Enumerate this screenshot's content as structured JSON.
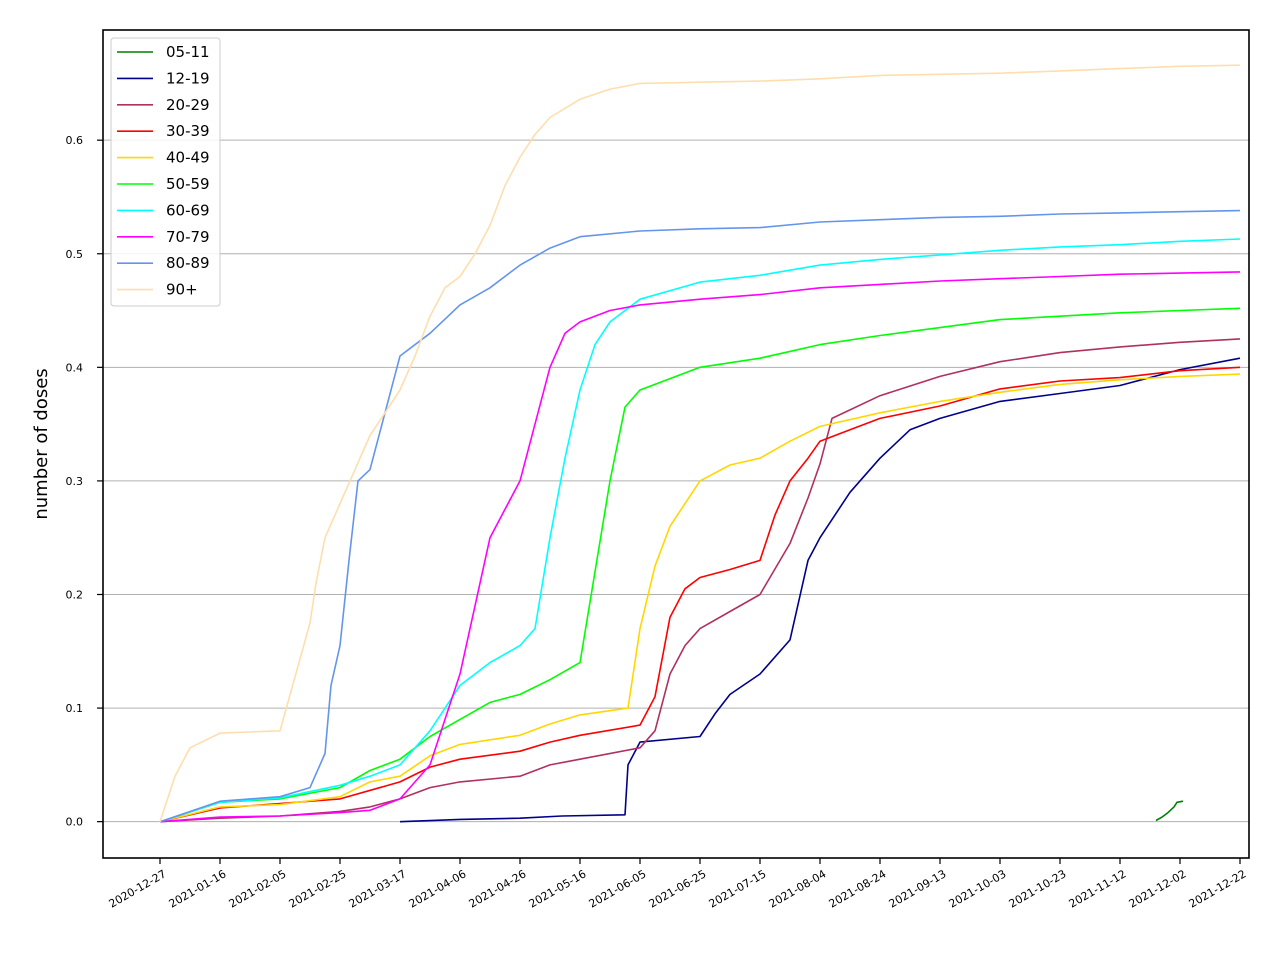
{
  "chart_data": {
    "type": "line",
    "title": "",
    "xlabel": "",
    "ylabel": "number of doses",
    "x_ticks": [
      "2020-12-27",
      "2021-01-16",
      "2021-02-05",
      "2021-02-25",
      "2021-03-17",
      "2021-04-06",
      "2021-04-26",
      "2021-05-16",
      "2021-06-05",
      "2021-06-25",
      "2021-07-15",
      "2021-08-04",
      "2021-08-24",
      "2021-09-13",
      "2021-10-03",
      "2021-10-23",
      "2021-11-12",
      "2021-12-02",
      "2021-12-22"
    ],
    "y_ticks": [
      "0.0",
      "0.1",
      "0.2",
      "0.3",
      "0.4",
      "0.5",
      "0.6"
    ],
    "xlim": [
      "2020-12-08",
      "2021-12-25"
    ],
    "ylim": [
      -0.032,
      0.697
    ],
    "grid": "horizontal",
    "legend_position": "top-left",
    "series": [
      {
        "name": "05-11",
        "color": "#008000",
        "points": [
          [
            "2021-11-24",
            0.001
          ],
          [
            "2021-11-26",
            0.004
          ],
          [
            "2021-11-28",
            0.008
          ],
          [
            "2021-11-30",
            0.013
          ],
          [
            "2021-12-01",
            0.017
          ],
          [
            "2021-12-03",
            0.018
          ]
        ]
      },
      {
        "name": "12-19",
        "color": "#00008b",
        "points": [
          [
            "2021-03-17",
            0.0
          ],
          [
            "2021-04-06",
            0.002
          ],
          [
            "2021-04-26",
            0.003
          ],
          [
            "2021-05-10",
            0.005
          ],
          [
            "2021-05-31",
            0.006
          ],
          [
            "2021-06-01",
            0.05
          ],
          [
            "2021-06-05",
            0.07
          ],
          [
            "2021-06-25",
            0.075
          ],
          [
            "2021-06-30",
            0.095
          ],
          [
            "2021-07-05",
            0.112
          ],
          [
            "2021-07-15",
            0.13
          ],
          [
            "2021-07-25",
            0.16
          ],
          [
            "2021-07-31",
            0.23
          ],
          [
            "2021-08-04",
            0.25
          ],
          [
            "2021-08-14",
            0.29
          ],
          [
            "2021-08-24",
            0.32
          ],
          [
            "2021-09-03",
            0.345
          ],
          [
            "2021-09-13",
            0.355
          ],
          [
            "2021-10-03",
            0.37
          ],
          [
            "2021-10-23",
            0.377
          ],
          [
            "2021-11-12",
            0.384
          ],
          [
            "2021-12-02",
            0.398
          ],
          [
            "2021-12-22",
            0.408
          ]
        ]
      },
      {
        "name": "20-29",
        "color": "#b03060",
        "points": [
          [
            "2020-12-27",
            0.0
          ],
          [
            "2021-01-16",
            0.003
          ],
          [
            "2021-02-05",
            0.005
          ],
          [
            "2021-02-25",
            0.009
          ],
          [
            "2021-03-07",
            0.013
          ],
          [
            "2021-03-17",
            0.02
          ],
          [
            "2021-03-27",
            0.03
          ],
          [
            "2021-04-06",
            0.035
          ],
          [
            "2021-04-26",
            0.04
          ],
          [
            "2021-05-06",
            0.05
          ],
          [
            "2021-05-16",
            0.055
          ],
          [
            "2021-06-05",
            0.065
          ],
          [
            "2021-06-10",
            0.08
          ],
          [
            "2021-06-15",
            0.13
          ],
          [
            "2021-06-20",
            0.155
          ],
          [
            "2021-06-25",
            0.17
          ],
          [
            "2021-07-05",
            0.185
          ],
          [
            "2021-07-15",
            0.2
          ],
          [
            "2021-07-25",
            0.245
          ],
          [
            "2021-07-31",
            0.285
          ],
          [
            "2021-08-04",
            0.315
          ],
          [
            "2021-08-08",
            0.355
          ],
          [
            "2021-08-24",
            0.375
          ],
          [
            "2021-09-13",
            0.392
          ],
          [
            "2021-10-03",
            0.405
          ],
          [
            "2021-10-23",
            0.413
          ],
          [
            "2021-11-12",
            0.418
          ],
          [
            "2021-12-02",
            0.422
          ],
          [
            "2021-12-22",
            0.425
          ]
        ]
      },
      {
        "name": "30-39",
        "color": "#ff0000",
        "points": [
          [
            "2020-12-27",
            0.0
          ],
          [
            "2021-01-16",
            0.012
          ],
          [
            "2021-02-05",
            0.016
          ],
          [
            "2021-02-25",
            0.02
          ],
          [
            "2021-03-17",
            0.035
          ],
          [
            "2021-03-27",
            0.048
          ],
          [
            "2021-04-06",
            0.055
          ],
          [
            "2021-04-26",
            0.062
          ],
          [
            "2021-05-06",
            0.07
          ],
          [
            "2021-05-16",
            0.076
          ],
          [
            "2021-06-05",
            0.085
          ],
          [
            "2021-06-10",
            0.11
          ],
          [
            "2021-06-15",
            0.18
          ],
          [
            "2021-06-20",
            0.205
          ],
          [
            "2021-06-25",
            0.215
          ],
          [
            "2021-07-05",
            0.222
          ],
          [
            "2021-07-15",
            0.23
          ],
          [
            "2021-07-20",
            0.27
          ],
          [
            "2021-07-25",
            0.3
          ],
          [
            "2021-07-31",
            0.32
          ],
          [
            "2021-08-04",
            0.335
          ],
          [
            "2021-08-14",
            0.345
          ],
          [
            "2021-08-24",
            0.355
          ],
          [
            "2021-09-13",
            0.366
          ],
          [
            "2021-10-03",
            0.381
          ],
          [
            "2021-10-23",
            0.388
          ],
          [
            "2021-11-12",
            0.391
          ],
          [
            "2021-12-02",
            0.397
          ],
          [
            "2021-12-22",
            0.4
          ]
        ]
      },
      {
        "name": "40-49",
        "color": "#ffd700",
        "points": [
          [
            "2020-12-27",
            0.0
          ],
          [
            "2021-01-16",
            0.013
          ],
          [
            "2021-02-05",
            0.015
          ],
          [
            "2021-02-25",
            0.022
          ],
          [
            "2021-03-07",
            0.035
          ],
          [
            "2021-03-17",
            0.04
          ],
          [
            "2021-03-27",
            0.058
          ],
          [
            "2021-04-06",
            0.068
          ],
          [
            "2021-04-26",
            0.076
          ],
          [
            "2021-05-06",
            0.086
          ],
          [
            "2021-05-16",
            0.094
          ],
          [
            "2021-06-01",
            0.1
          ],
          [
            "2021-06-05",
            0.17
          ],
          [
            "2021-06-10",
            0.225
          ],
          [
            "2021-06-15",
            0.26
          ],
          [
            "2021-06-20",
            0.28
          ],
          [
            "2021-06-25",
            0.3
          ],
          [
            "2021-07-05",
            0.314
          ],
          [
            "2021-07-15",
            0.32
          ],
          [
            "2021-07-25",
            0.335
          ],
          [
            "2021-08-04",
            0.348
          ],
          [
            "2021-08-24",
            0.36
          ],
          [
            "2021-09-13",
            0.37
          ],
          [
            "2021-10-03",
            0.378
          ],
          [
            "2021-10-23",
            0.385
          ],
          [
            "2021-11-12",
            0.389
          ],
          [
            "2021-12-02",
            0.392
          ],
          [
            "2021-12-22",
            0.394
          ]
        ]
      },
      {
        "name": "50-59",
        "color": "#00ff00",
        "points": [
          [
            "2020-12-27",
            0.0
          ],
          [
            "2021-01-16",
            0.017
          ],
          [
            "2021-02-05",
            0.02
          ],
          [
            "2021-02-25",
            0.03
          ],
          [
            "2021-03-07",
            0.045
          ],
          [
            "2021-03-17",
            0.055
          ],
          [
            "2021-03-27",
            0.075
          ],
          [
            "2021-04-06",
            0.09
          ],
          [
            "2021-04-16",
            0.105
          ],
          [
            "2021-04-26",
            0.112
          ],
          [
            "2021-05-06",
            0.125
          ],
          [
            "2021-05-16",
            0.14
          ],
          [
            "2021-05-21",
            0.22
          ],
          [
            "2021-05-26",
            0.3
          ],
          [
            "2021-05-31",
            0.365
          ],
          [
            "2021-06-05",
            0.38
          ],
          [
            "2021-06-25",
            0.4
          ],
          [
            "2021-07-15",
            0.408
          ],
          [
            "2021-08-04",
            0.42
          ],
          [
            "2021-08-24",
            0.428
          ],
          [
            "2021-09-13",
            0.435
          ],
          [
            "2021-10-03",
            0.442
          ],
          [
            "2021-10-23",
            0.445
          ],
          [
            "2021-11-12",
            0.448
          ],
          [
            "2021-12-02",
            0.45
          ],
          [
            "2021-12-22",
            0.452
          ]
        ]
      },
      {
        "name": "60-69",
        "color": "#00ffff",
        "points": [
          [
            "2020-12-27",
            0.0
          ],
          [
            "2021-01-16",
            0.017
          ],
          [
            "2021-02-05",
            0.021
          ],
          [
            "2021-02-25",
            0.032
          ],
          [
            "2021-03-07",
            0.04
          ],
          [
            "2021-03-17",
            0.05
          ],
          [
            "2021-03-27",
            0.08
          ],
          [
            "2021-04-06",
            0.12
          ],
          [
            "2021-04-16",
            0.14
          ],
          [
            "2021-04-26",
            0.155
          ],
          [
            "2021-05-01",
            0.17
          ],
          [
            "2021-05-06",
            0.25
          ],
          [
            "2021-05-11",
            0.32
          ],
          [
            "2021-05-16",
            0.38
          ],
          [
            "2021-05-21",
            0.42
          ],
          [
            "2021-05-26",
            0.44
          ],
          [
            "2021-06-05",
            0.46
          ],
          [
            "2021-06-25",
            0.475
          ],
          [
            "2021-07-15",
            0.481
          ],
          [
            "2021-08-04",
            0.49
          ],
          [
            "2021-08-24",
            0.495
          ],
          [
            "2021-09-13",
            0.499
          ],
          [
            "2021-10-03",
            0.503
          ],
          [
            "2021-10-23",
            0.506
          ],
          [
            "2021-11-12",
            0.508
          ],
          [
            "2021-12-02",
            0.511
          ],
          [
            "2021-12-22",
            0.513
          ]
        ]
      },
      {
        "name": "70-79",
        "color": "#ff00ff",
        "points": [
          [
            "2020-12-27",
            0.0
          ],
          [
            "2021-01-16",
            0.004
          ],
          [
            "2021-02-05",
            0.005
          ],
          [
            "2021-02-25",
            0.008
          ],
          [
            "2021-03-07",
            0.01
          ],
          [
            "2021-03-17",
            0.02
          ],
          [
            "2021-03-27",
            0.05
          ],
          [
            "2021-04-01",
            0.09
          ],
          [
            "2021-04-06",
            0.13
          ],
          [
            "2021-04-11",
            0.19
          ],
          [
            "2021-04-16",
            0.25
          ],
          [
            "2021-04-21",
            0.275
          ],
          [
            "2021-04-26",
            0.3
          ],
          [
            "2021-05-01",
            0.35
          ],
          [
            "2021-05-06",
            0.4
          ],
          [
            "2021-05-11",
            0.43
          ],
          [
            "2021-05-16",
            0.44
          ],
          [
            "2021-05-26",
            0.45
          ],
          [
            "2021-06-05",
            0.455
          ],
          [
            "2021-06-25",
            0.46
          ],
          [
            "2021-07-15",
            0.464
          ],
          [
            "2021-08-04",
            0.47
          ],
          [
            "2021-08-24",
            0.473
          ],
          [
            "2021-09-13",
            0.476
          ],
          [
            "2021-10-03",
            0.478
          ],
          [
            "2021-10-23",
            0.48
          ],
          [
            "2021-11-12",
            0.482
          ],
          [
            "2021-12-02",
            0.483
          ],
          [
            "2021-12-22",
            0.484
          ]
        ]
      },
      {
        "name": "80-89",
        "color": "#6495ed",
        "points": [
          [
            "2020-12-27",
            0.0
          ],
          [
            "2021-01-16",
            0.018
          ],
          [
            "2021-02-05",
            0.022
          ],
          [
            "2021-02-15",
            0.03
          ],
          [
            "2021-02-20",
            0.06
          ],
          [
            "2021-02-22",
            0.12
          ],
          [
            "2021-02-25",
            0.155
          ],
          [
            "2021-02-28",
            0.23
          ],
          [
            "2021-03-03",
            0.3
          ],
          [
            "2021-03-07",
            0.31
          ],
          [
            "2021-03-12",
            0.36
          ],
          [
            "2021-03-17",
            0.41
          ],
          [
            "2021-03-27",
            0.43
          ],
          [
            "2021-04-06",
            0.455
          ],
          [
            "2021-04-16",
            0.47
          ],
          [
            "2021-04-26",
            0.49
          ],
          [
            "2021-05-06",
            0.505
          ],
          [
            "2021-05-16",
            0.515
          ],
          [
            "2021-06-05",
            0.52
          ],
          [
            "2021-06-25",
            0.522
          ],
          [
            "2021-07-15",
            0.523
          ],
          [
            "2021-08-04",
            0.528
          ],
          [
            "2021-08-24",
            0.53
          ],
          [
            "2021-09-13",
            0.532
          ],
          [
            "2021-10-03",
            0.533
          ],
          [
            "2021-10-23",
            0.535
          ],
          [
            "2021-11-12",
            0.536
          ],
          [
            "2021-12-02",
            0.537
          ],
          [
            "2021-12-22",
            0.538
          ]
        ]
      },
      {
        "name": "90+",
        "color": "#ffdead",
        "points": [
          [
            "2020-12-27",
            0.0
          ],
          [
            "2021-01-01",
            0.04
          ],
          [
            "2021-01-06",
            0.065
          ],
          [
            "2021-01-16",
            0.078
          ],
          [
            "2021-02-05",
            0.08
          ],
          [
            "2021-02-15",
            0.175
          ],
          [
            "2021-02-17",
            0.21
          ],
          [
            "2021-02-20",
            0.25
          ],
          [
            "2021-02-25",
            0.28
          ],
          [
            "2021-03-02",
            0.31
          ],
          [
            "2021-03-07",
            0.34
          ],
          [
            "2021-03-12",
            0.36
          ],
          [
            "2021-03-17",
            0.38
          ],
          [
            "2021-03-22",
            0.41
          ],
          [
            "2021-03-27",
            0.445
          ],
          [
            "2021-04-01",
            0.47
          ],
          [
            "2021-04-06",
            0.48
          ],
          [
            "2021-04-11",
            0.5
          ],
          [
            "2021-04-16",
            0.525
          ],
          [
            "2021-04-21",
            0.56
          ],
          [
            "2021-04-26",
            0.585
          ],
          [
            "2021-05-01",
            0.605
          ],
          [
            "2021-05-06",
            0.62
          ],
          [
            "2021-05-16",
            0.636
          ],
          [
            "2021-05-26",
            0.645
          ],
          [
            "2021-06-05",
            0.65
          ],
          [
            "2021-06-25",
            0.651
          ],
          [
            "2021-07-15",
            0.652
          ],
          [
            "2021-08-04",
            0.654
          ],
          [
            "2021-08-24",
            0.657
          ],
          [
            "2021-09-13",
            0.658
          ],
          [
            "2021-10-03",
            0.659
          ],
          [
            "2021-10-23",
            0.661
          ],
          [
            "2021-11-12",
            0.663
          ],
          [
            "2021-12-02",
            0.665
          ],
          [
            "2021-12-22",
            0.666
          ]
        ]
      }
    ]
  }
}
